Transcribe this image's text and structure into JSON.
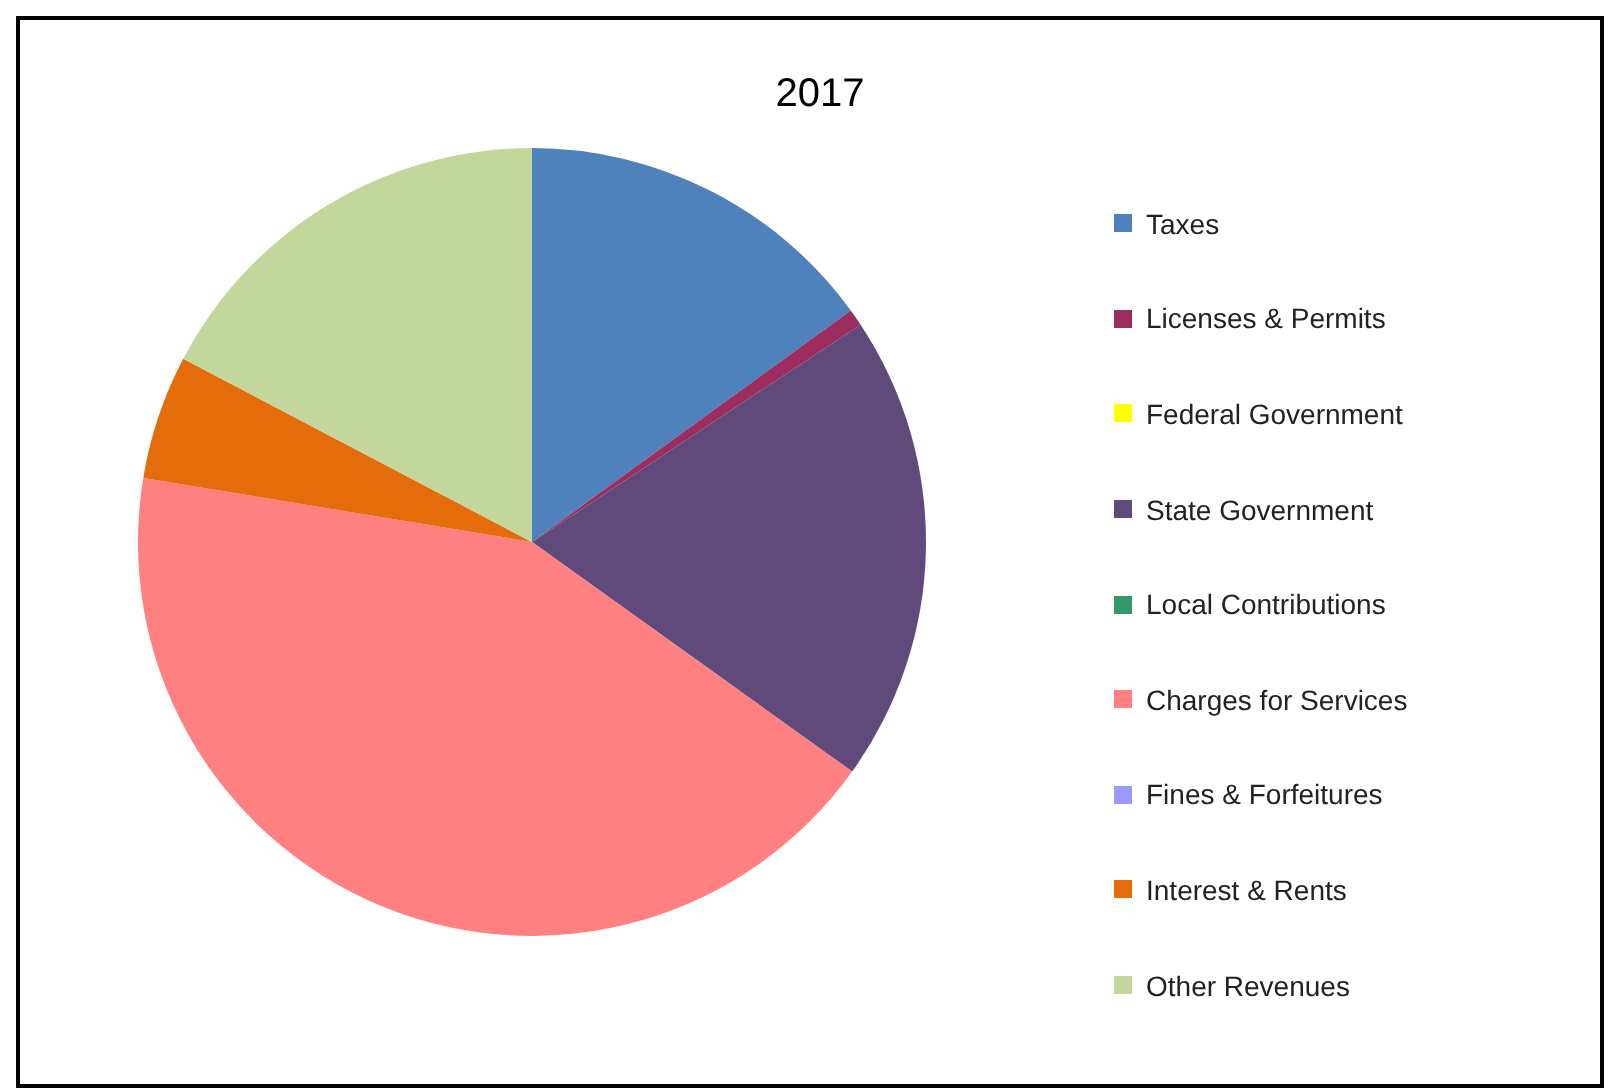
{
  "chart_data": {
    "type": "pie",
    "title": "2017",
    "categories": [
      "Taxes",
      "Licenses & Permits",
      "Federal Government",
      "State Government",
      "Local Contributions",
      "Charges for Services",
      "Fines & Forfeitures",
      "Interest & Rents",
      "Other Revenues"
    ],
    "values": [
      15.0,
      0.7,
      0,
      19.2,
      0,
      42.7,
      0,
      5.1,
      17.3
    ],
    "colors": [
      "#4f81bd",
      "#9b2d5f",
      "#ffff00",
      "#604a7b",
      "#339966",
      "#ff8080",
      "#9999ff",
      "#e46c0a",
      "#c3d69b"
    ],
    "legend": "right"
  }
}
